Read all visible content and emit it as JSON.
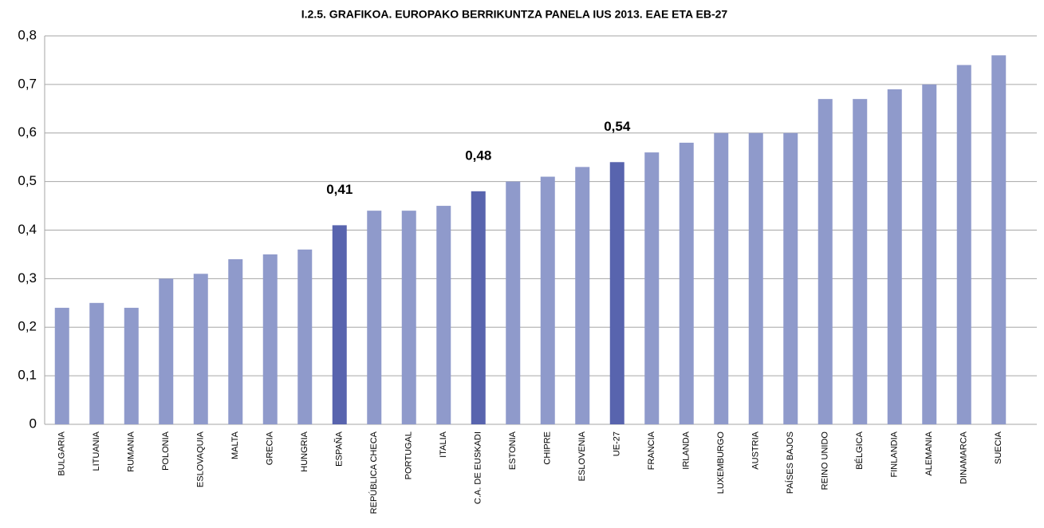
{
  "chart_data": {
    "type": "bar",
    "title": "I.2.5. GRAFIKOA. EUROPAKO BERRIKUNTZA PANELA IUS 2013. EAE ETA EB-27",
    "categories": [
      "BULGARIA",
      "LITUANIA",
      "RUMANIA",
      "POLONIA",
      "ESLOVAQUIA",
      "MALTA",
      "GRECIA",
      "HUNGRIA",
      "ESPAÑA",
      "REPÚBLICA CHECA",
      "PORTUGAL",
      "ITALIA",
      "C.A. DE EUSKADI",
      "ESTONIA",
      "CHIPRE",
      "ESLOVENIA",
      "UE-27",
      "FRANCIA",
      "IRLANDA",
      "LUXEMBURGO",
      "AUSTRIA",
      "PAÍSES BAJOS",
      "REINO UNIDO",
      "BÉLGICA",
      "FINLANDIA",
      "ALEMANIA",
      "DINAMARCA",
      "SUECIA"
    ],
    "values": [
      0.24,
      0.25,
      0.24,
      0.3,
      0.31,
      0.34,
      0.35,
      0.36,
      0.41,
      0.44,
      0.44,
      0.45,
      0.48,
      0.5,
      0.51,
      0.53,
      0.54,
      0.56,
      0.58,
      0.6,
      0.6,
      0.6,
      0.67,
      0.67,
      0.69,
      0.7,
      0.74,
      0.76
    ],
    "value_labels": [
      null,
      null,
      null,
      null,
      null,
      null,
      null,
      null,
      "0,41",
      null,
      null,
      null,
      "0,48",
      null,
      null,
      null,
      "0,54",
      null,
      null,
      null,
      null,
      null,
      null,
      null,
      null,
      null,
      null,
      null
    ],
    "colors": [
      "#8f9acb",
      "#8f9acb",
      "#8f9acb",
      "#8f9acb",
      "#8f9acb",
      "#8f9acb",
      "#8f9acb",
      "#8f9acb",
      "#5864ae",
      "#8f9acb",
      "#8f9acb",
      "#8f9acb",
      "#5864ae",
      "#8f9acb",
      "#8f9acb",
      "#8f9acb",
      "#5864ae",
      "#8f9acb",
      "#8f9acb",
      "#8f9acb",
      "#8f9acb",
      "#8f9acb",
      "#8f9acb",
      "#8f9acb",
      "#8f9acb",
      "#8f9acb",
      "#8f9acb",
      "#8f9acb"
    ],
    "ylim": [
      0,
      0.8
    ],
    "yticks": [
      0,
      {
        "value": 0.1,
        "label": "0,1"
      },
      {
        "value": 0.2,
        "label": "0,2"
      },
      {
        "value": 0.3,
        "label": "0,3"
      },
      {
        "value": 0.4,
        "label": "0,4"
      },
      {
        "value": 0.5,
        "label": "0,5"
      },
      {
        "value": 0.6,
        "label": "0,6"
      },
      {
        "value": 0.7,
        "label": "0,7"
      },
      {
        "value": 0.8,
        "label": "0,8"
      }
    ],
    "grid": true
  }
}
